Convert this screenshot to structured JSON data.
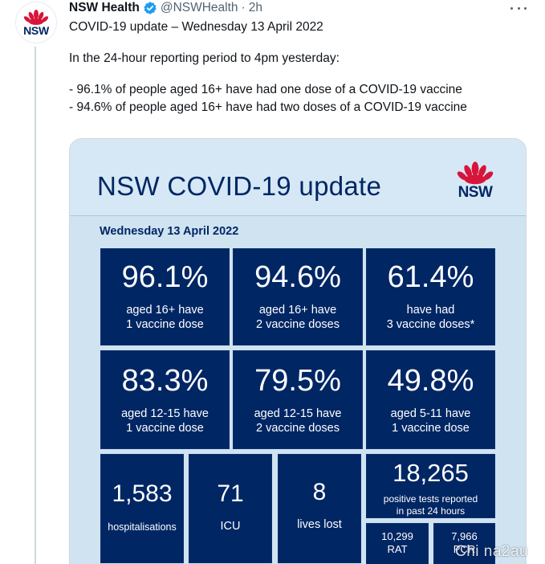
{
  "tweet": {
    "display_name": "NSW Health",
    "handle": "@NSWHealth",
    "separator": "·",
    "time": "2h",
    "avatar_text": "NSW",
    "lines": [
      "COVID-19 update – Wednesday 13 April 2022",
      "In the 24-hour reporting period to 4pm yesterday:",
      "- 96.1% of people aged 16+ have had one dose of a COVID-19 vaccine",
      "- 94.6% of people aged 16+ have had two doses of a COVID-19 vaccine"
    ]
  },
  "card": {
    "title": "NSW COVID-19 update",
    "logo_text": "NSW",
    "date": "Wednesday 13 April 2022",
    "row1": [
      {
        "value": "96.1%",
        "line1": "aged 16+ have",
        "line2": "1 vaccine dose"
      },
      {
        "value": "94.6%",
        "line1": "aged 16+ have",
        "line2": "2 vaccine doses"
      },
      {
        "value": "61.4%",
        "line1": "have had",
        "line2": "3 vaccine doses*"
      }
    ],
    "row2": [
      {
        "value": "83.3%",
        "line1": "aged 12-15 have",
        "line2": "1 vaccine dose"
      },
      {
        "value": "79.5%",
        "line1": "aged 12-15 have",
        "line2": "2 vaccine doses"
      },
      {
        "value": "49.8%",
        "line1": "aged 5-11 have",
        "line2": "1 vaccine dose"
      }
    ],
    "row3": {
      "hospitalisations": {
        "value": "1,583",
        "label": "hospitalisations"
      },
      "icu": {
        "value": "71",
        "label": "ICU"
      },
      "lives_lost": {
        "value": "8",
        "label": "lives lost"
      },
      "positive_tests": {
        "value": "18,265",
        "line1": "positive tests reported",
        "line2": "in past 24 hours"
      },
      "rat": {
        "value": "10,299",
        "label": "RAT"
      },
      "pcr": {
        "value": "7,966",
        "label": "PCR"
      }
    }
  },
  "watermark": "Chi na2au",
  "colors": {
    "navy": "#002664",
    "card_background": "#cfe3f1",
    "nsw_red": "#d7153a",
    "twitter_blue": "#1d9bf0",
    "secondary_text": "#536471"
  }
}
